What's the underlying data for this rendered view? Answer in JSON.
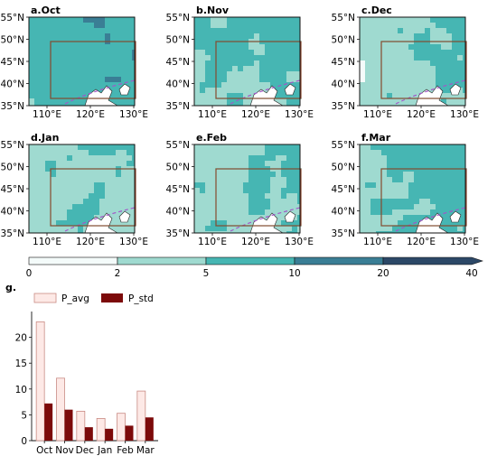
{
  "colors": {
    "class_0_2": "#f4fbfa",
    "class_2_5": "#9fdad0",
    "class_5_10": "#46b6b3",
    "class_10_20": "#3a7e95",
    "class_20_40": "#2c4867",
    "box_green": "#2f6b3b",
    "box_red": "#b23a2a",
    "dash": "#a357c8",
    "avg_fill": "#fde9e6",
    "avg_edge": "#c98b84",
    "std_fill": "#7c0a0a"
  },
  "maps": {
    "lat_ticks": [
      "55°N",
      "50°N",
      "45°N",
      "40°N",
      "35°N"
    ],
    "lon_ticks": [
      "110°E",
      "120°E",
      "130°E"
    ],
    "panels": [
      {
        "label": "a.Oct",
        "level": 3
      },
      {
        "label": "b.Nov",
        "level": 2
      },
      {
        "label": "c.Dec",
        "level": 1
      },
      {
        "label": "d.Jan",
        "level": 1
      },
      {
        "label": "e.Feb",
        "level": 1.5
      },
      {
        "label": "f.Mar",
        "level": 2
      }
    ]
  },
  "colorbar": {
    "ticks": [
      "0",
      "2",
      "5",
      "10",
      "20",
      "40"
    ]
  },
  "chart_data": {
    "type": "bar",
    "title": "g.",
    "categories": [
      "Oct",
      "Nov",
      "Dec",
      "Jan",
      "Feb",
      "Mar"
    ],
    "series": [
      {
        "name": "P_avg",
        "values": [
          23.0,
          12.1,
          5.7,
          4.3,
          5.3,
          9.6
        ]
      },
      {
        "name": "P_std",
        "values": [
          7.2,
          6.0,
          2.6,
          2.3,
          2.9,
          4.5
        ]
      }
    ],
    "yticks": [
      "0",
      "5",
      "10",
      "15",
      "20"
    ],
    "ylim": [
      0,
      25
    ],
    "grid": false,
    "legend_position": "top-left"
  }
}
